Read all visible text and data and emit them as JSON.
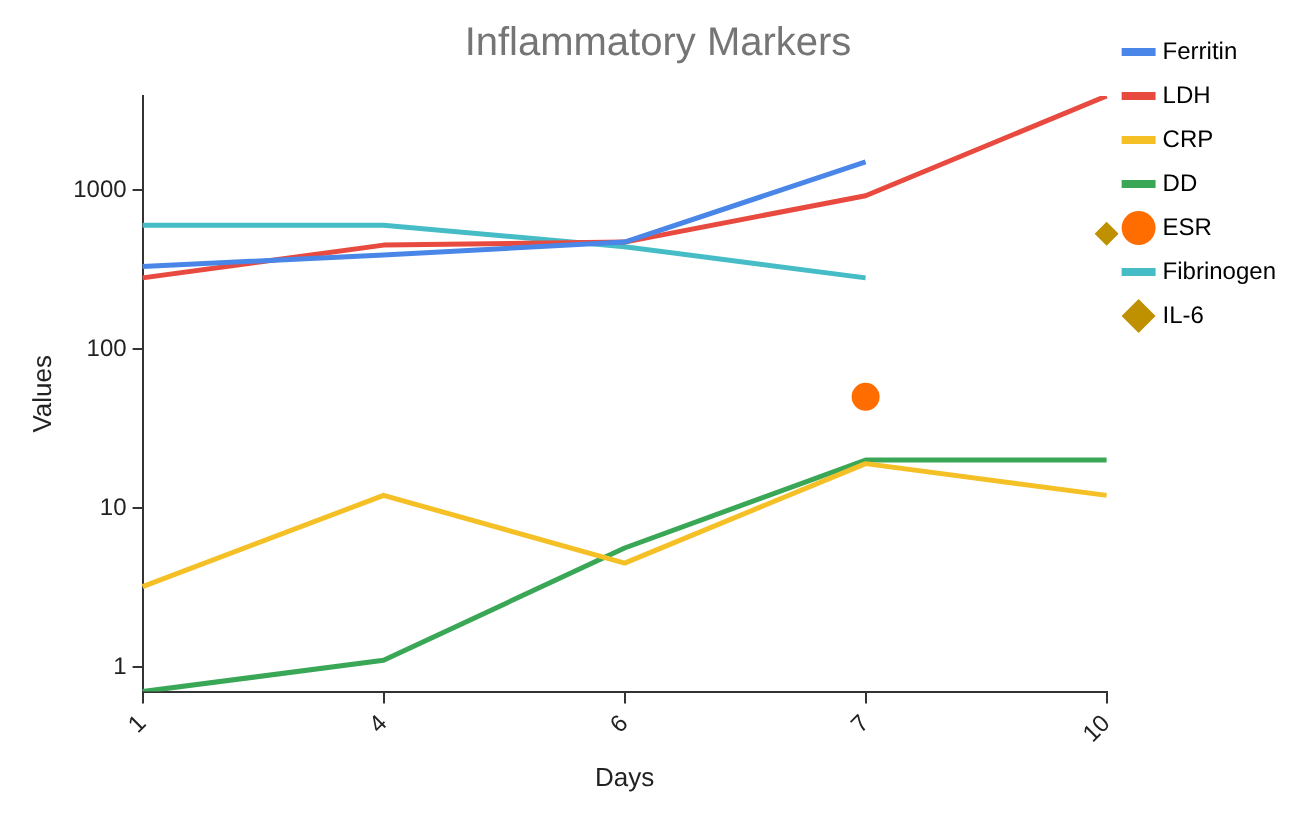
{
  "chart_data": {
    "type": "line",
    "title": "Inflammatory Markers",
    "xlabel": "Days",
    "ylabel": "Values",
    "categories": [
      "1",
      "4",
      "6",
      "7",
      "10"
    ],
    "series": [
      {
        "name": "Ferritin",
        "color": "#4a86e8",
        "values": [
          330,
          390,
          470,
          1500,
          null
        ]
      },
      {
        "name": "LDH",
        "color": "#e84a3f",
        "values": [
          280,
          450,
          470,
          920,
          3900
        ]
      },
      {
        "name": "CRP",
        "color": "#f5c026",
        "values": [
          3.2,
          12,
          4.5,
          19,
          12
        ]
      },
      {
        "name": "DD",
        "color": "#3aa757",
        "values": [
          0.7,
          1.1,
          5.6,
          20,
          20
        ]
      },
      {
        "name": "ESR",
        "color": "#ff6d01",
        "type": "scatter",
        "marker": "circle",
        "values": [
          null,
          null,
          null,
          50,
          null
        ]
      },
      {
        "name": "Fibrinogen",
        "color": "#46bdc6",
        "values": [
          600,
          600,
          440,
          280,
          null
        ]
      },
      {
        "name": "IL-6",
        "color": "#bf9000",
        "type": "scatter",
        "marker": "diamond",
        "values": [
          null,
          null,
          null,
          null,
          530
        ]
      }
    ],
    "log": "y",
    "ylim": [
      0.7,
      3900
    ],
    "yticks": [
      1,
      10,
      100,
      1000
    ],
    "grid": false,
    "legend": "right",
    "marker": "none"
  }
}
